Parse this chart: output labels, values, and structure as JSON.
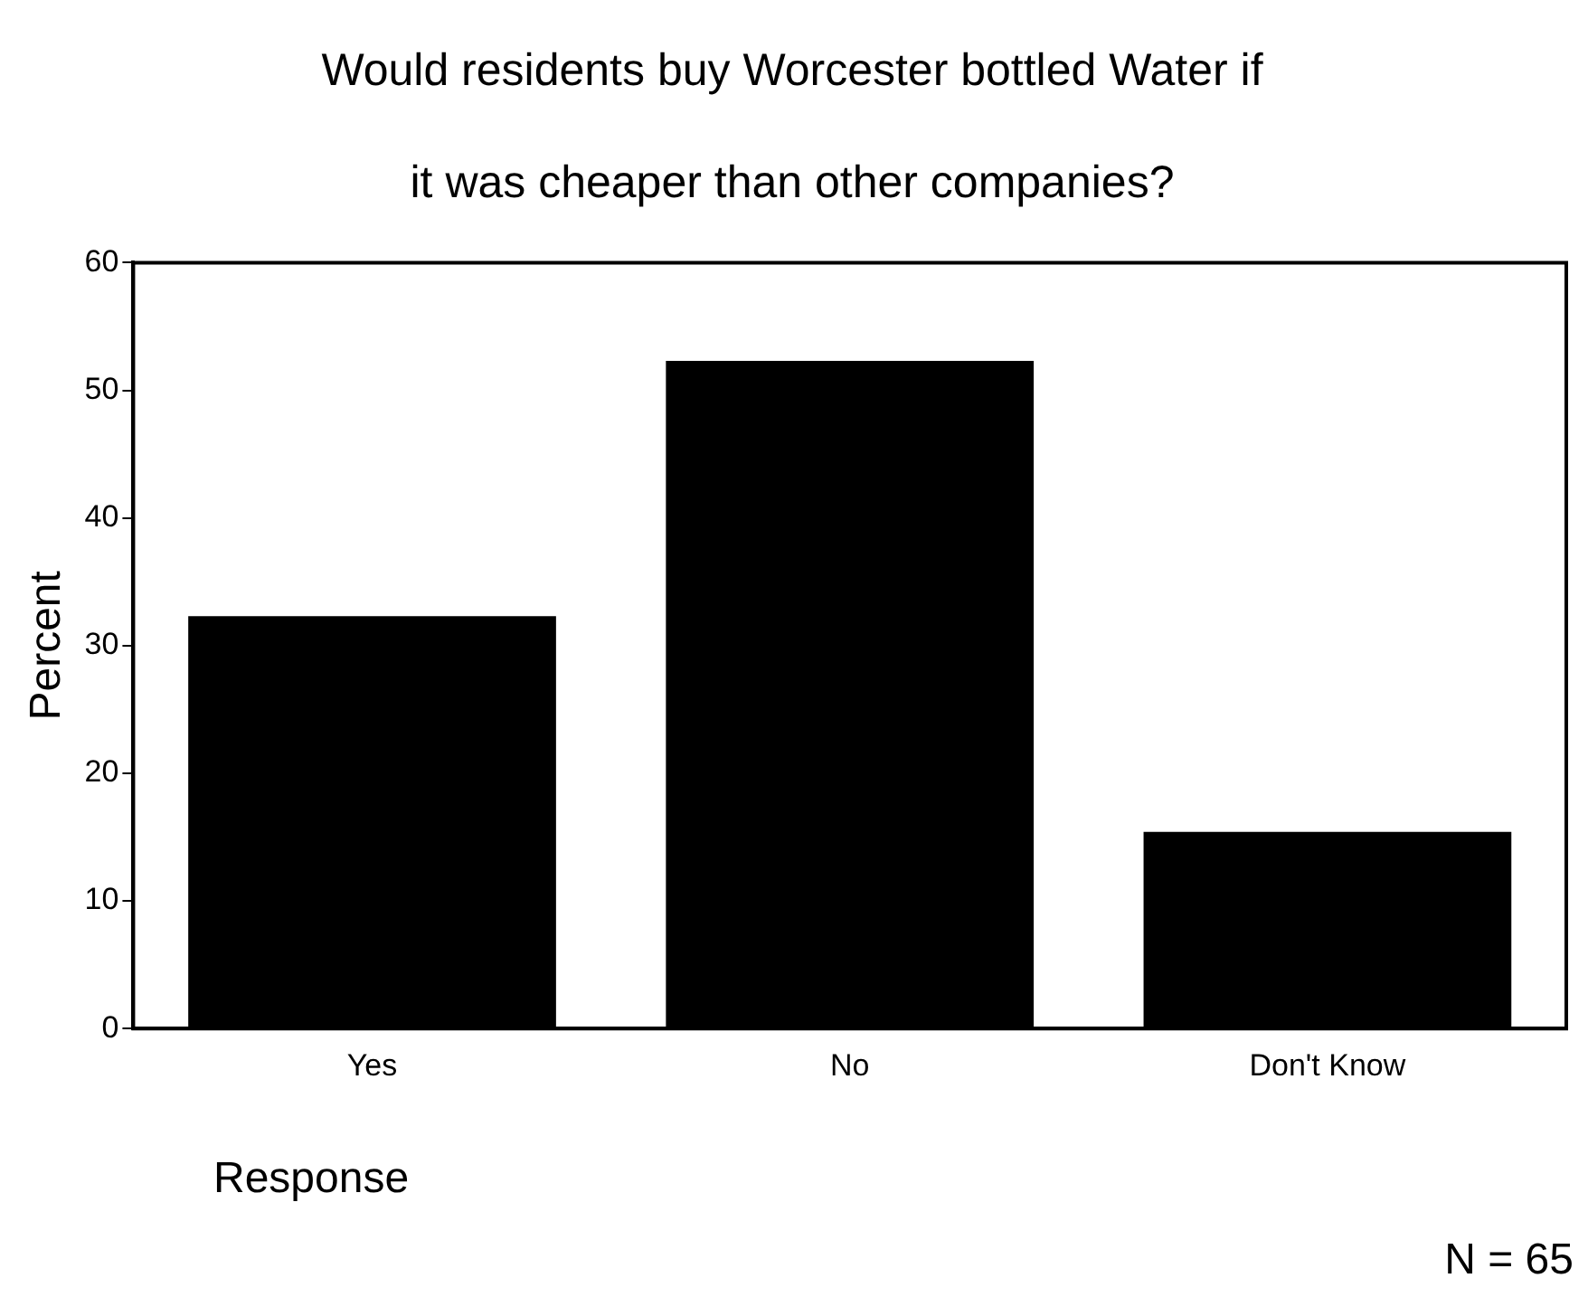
{
  "chart_data": {
    "type": "bar",
    "title": "Would residents buy Worcester bottled Water if it was cheaper than other companies?",
    "xlabel": "Response",
    "ylabel": "Percent",
    "categories": [
      "Yes",
      "No",
      "Don't Know"
    ],
    "values": [
      32.3,
      52.3,
      15.4
    ],
    "color": "#000000",
    "ylim": [
      0,
      60
    ],
    "yticks": [
      0,
      10,
      20,
      30,
      40,
      50,
      60
    ],
    "grid": false,
    "legend": false,
    "annotations": [
      "N = 65"
    ]
  }
}
